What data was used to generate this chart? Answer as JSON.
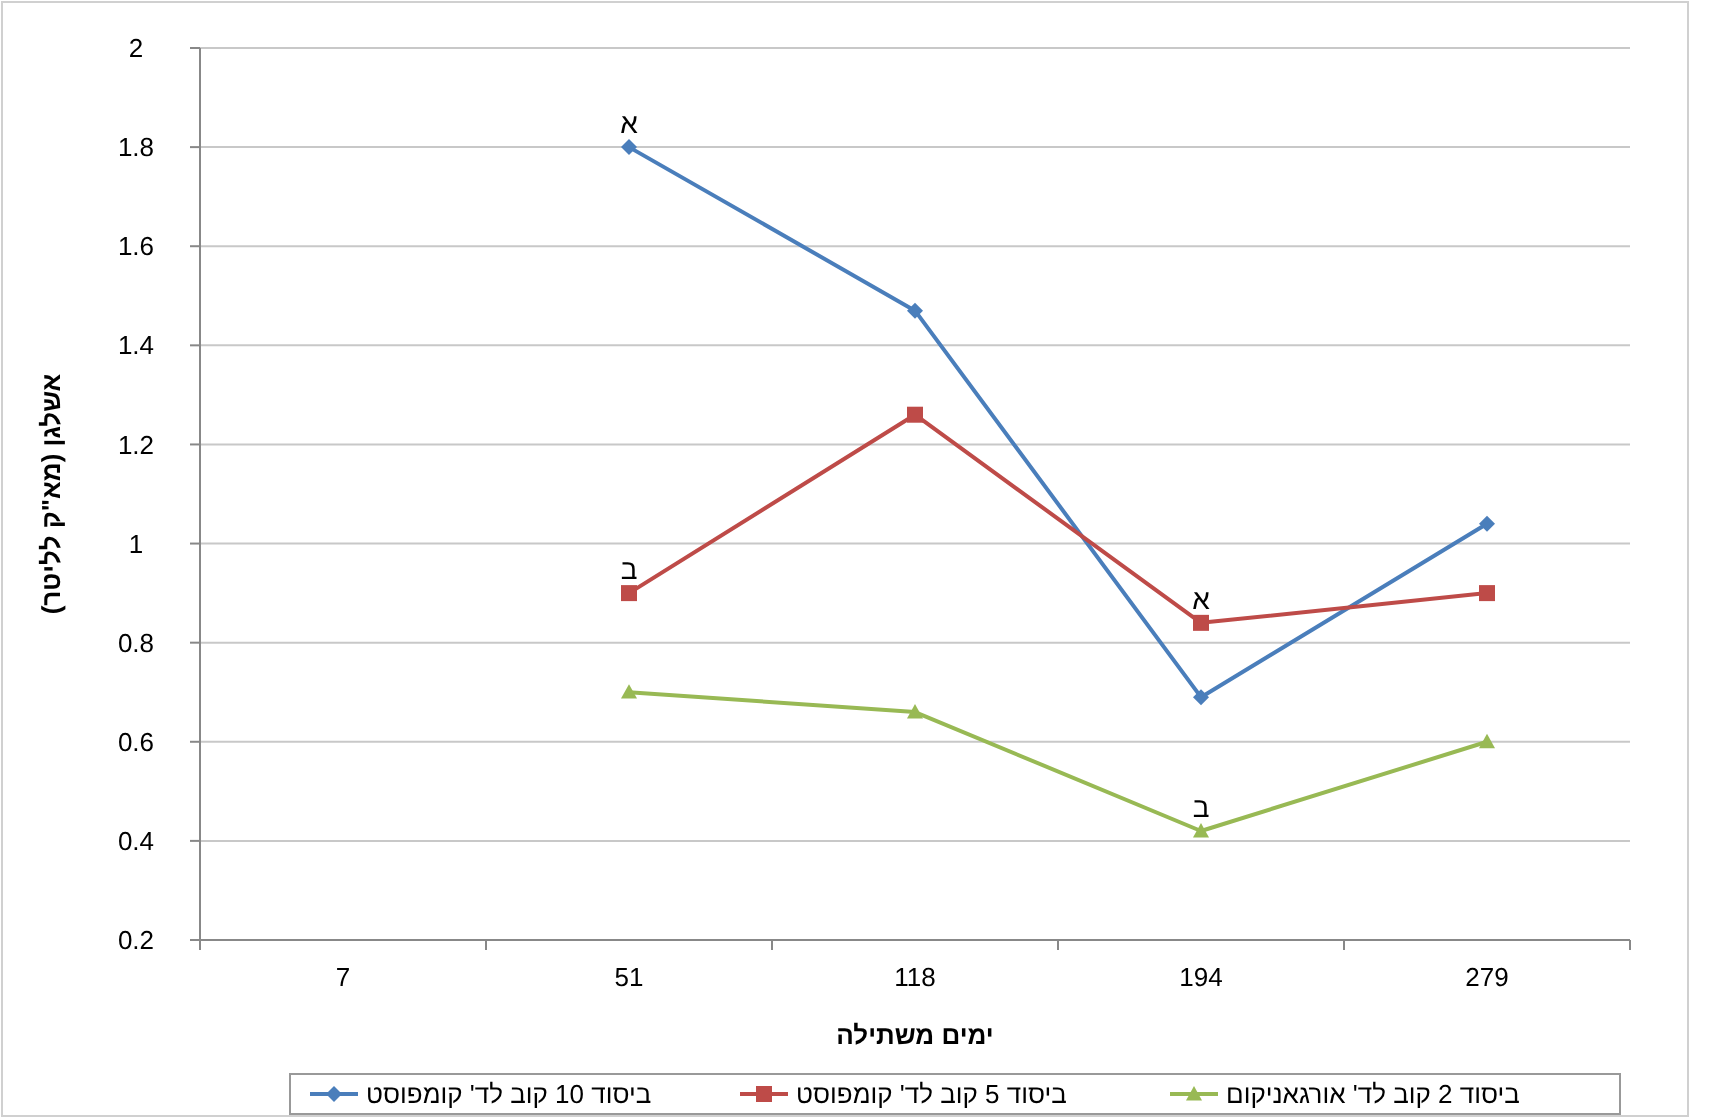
{
  "chart_data": {
    "type": "line",
    "xlabel": "ימים משתילה",
    "ylabel": "אשלגן (מא\"ק לליטר)",
    "categories": [
      "7",
      "51",
      "118",
      "194",
      "279"
    ],
    "series": [
      {
        "name": "ביסוד 10 קוב לד' קומפוסט",
        "color": "#4a7ebb",
        "marker": "diamond",
        "values": [
          null,
          1.8,
          1.47,
          0.69,
          1.04
        ]
      },
      {
        "name": "ביסוד 5 קוב לד' קומפוסט",
        "color": "#be4b48",
        "marker": "square",
        "values": [
          null,
          0.9,
          1.26,
          0.84,
          0.9
        ]
      },
      {
        "name": "ביסוד 2 קוב לד' אורגאניקום",
        "color": "#98b954",
        "marker": "triangle",
        "values": [
          null,
          0.7,
          0.66,
          0.42,
          0.6
        ]
      }
    ],
    "annotations": [
      {
        "text": "א",
        "x": "51",
        "y": 1.8
      },
      {
        "text": "ב",
        "x": "51",
        "y": 0.9
      },
      {
        "text": "א",
        "x": "194",
        "y": 0.84
      },
      {
        "text": "ב",
        "x": "194",
        "y": 0.42
      }
    ],
    "ylim": [
      0.2,
      2
    ],
    "yticks": [
      0.2,
      0.4,
      0.6,
      0.8,
      1,
      1.2,
      1.4,
      1.6,
      1.8,
      2
    ],
    "grid": "y",
    "legend": "bottom",
    "line_style": "solid"
  }
}
